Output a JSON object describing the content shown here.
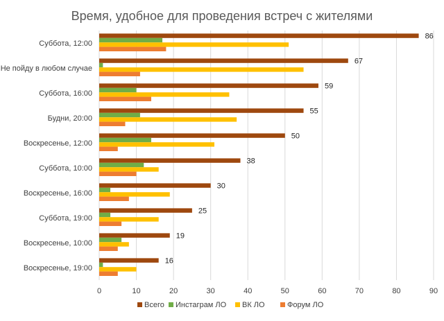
{
  "chart_data": {
    "type": "bar",
    "orientation": "horizontal",
    "title": "Время, удобное для проведения встреч с жителями",
    "categories": [
      "Суббота, 12:00",
      "Не пойду в любом случае",
      "Суббота, 16:00",
      "Будни, 20:00",
      "Воскресенье, 12:00",
      "Суббота, 10:00",
      "Воскресенье, 16:00",
      "Суббота, 19:00",
      "Воскресенье, 10:00",
      "Воскресенье, 19:00"
    ],
    "series": [
      {
        "name": "Всего",
        "color": "#9e480e",
        "values": [
          86,
          67,
          59,
          55,
          50,
          38,
          30,
          25,
          19,
          16
        ],
        "data_labels": true
      },
      {
        "name": "Инстаграм ЛО",
        "color": "#70ad47",
        "values": [
          17,
          1,
          10,
          11,
          14,
          12,
          3,
          3,
          6,
          1
        ]
      },
      {
        "name": "ВК ЛО",
        "color": "#ffc000",
        "values": [
          51,
          55,
          35,
          37,
          31,
          16,
          19,
          16,
          8,
          10
        ]
      },
      {
        "name": "Форум ЛО",
        "color": "#ed7d31",
        "values": [
          18,
          11,
          14,
          7,
          5,
          10,
          8,
          6,
          5,
          5
        ]
      }
    ],
    "xlim": [
      0,
      90
    ],
    "xticks": [
      0,
      10,
      20,
      30,
      40,
      50,
      60,
      70,
      80,
      90
    ],
    "grid": true,
    "legend_position": "bottom"
  }
}
